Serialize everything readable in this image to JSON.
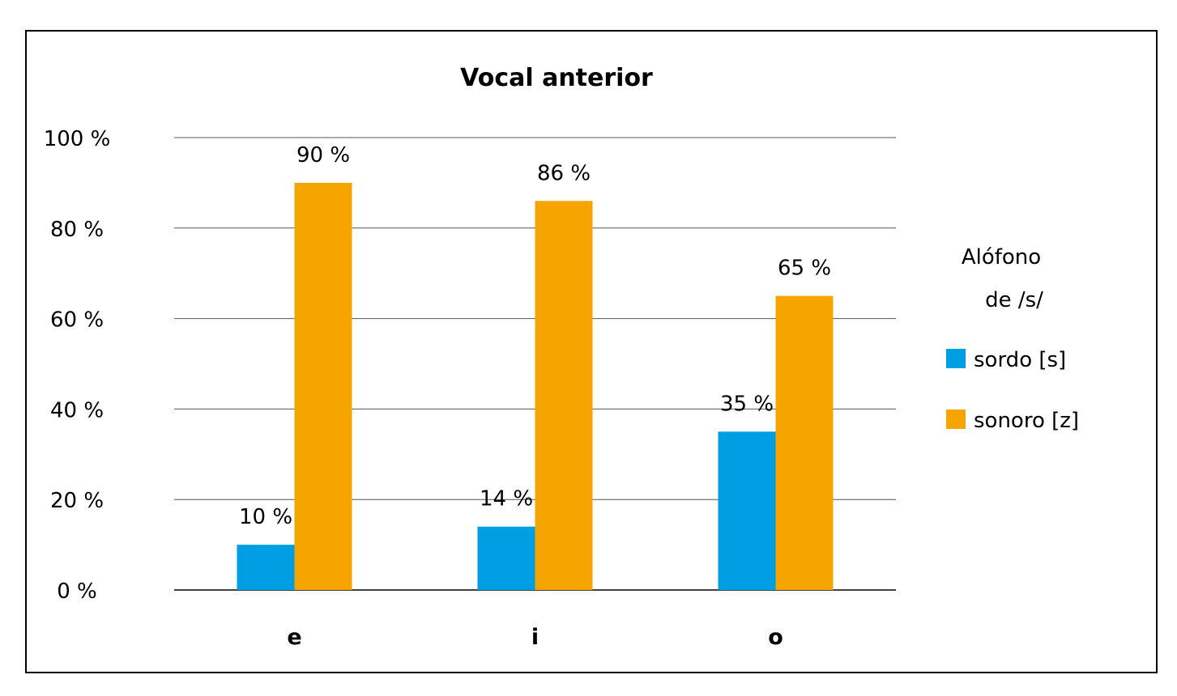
{
  "chart_data": {
    "type": "bar",
    "title": "Vocal anterior",
    "categories": [
      "e",
      "i",
      "o"
    ],
    "series": [
      {
        "name": "sordo [s]",
        "values": [
          10,
          14,
          35
        ],
        "color": "#009FE3",
        "labels": [
          "10 %",
          "14 %",
          "35 %"
        ]
      },
      {
        "name": "sonoro [z]",
        "values": [
          90,
          86,
          65
        ],
        "color": "#F5A400",
        "labels": [
          "90 %",
          "86 %",
          "65 %"
        ]
      }
    ],
    "ylim": [
      0,
      100
    ],
    "yticks": [
      0,
      20,
      40,
      60,
      80,
      100
    ],
    "ytick_labels": [
      "0 %",
      "20 %",
      "40 %",
      "60 %",
      "80 %",
      "100 %"
    ],
    "grid": true,
    "legend_title_line1": "Alófono",
    "legend_title_line2": "de /s/",
    "legend_position": "right"
  }
}
